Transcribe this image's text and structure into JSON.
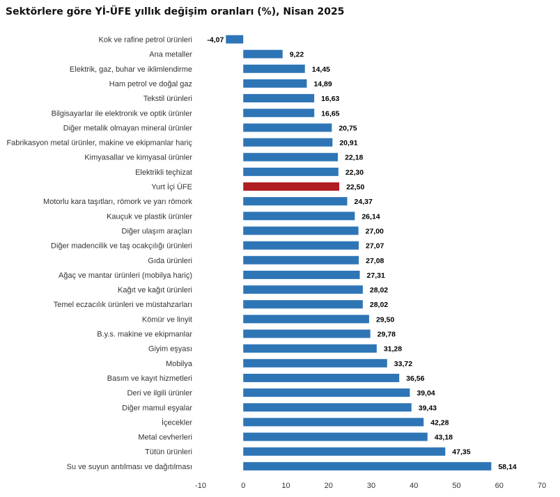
{
  "chart_data": {
    "type": "bar",
    "orientation": "horizontal",
    "title": "Sektörlere göre Yİ-ÜFE yıllık değişim oranları (%), Nisan 2025",
    "xlabel": "",
    "ylabel": "",
    "xlim": [
      -10,
      70
    ],
    "xticks": [
      -10,
      0,
      10,
      20,
      30,
      40,
      50,
      60,
      70
    ],
    "grid": false,
    "bar_color": "#2E75B6",
    "highlight_color": "#B01E23",
    "highlight_category": "Yurt İçi ÜFE",
    "categories": [
      "Kok ve rafine petrol ürünleri",
      "Ana metaller",
      "Elektrik, gaz, buhar ve iklimlendirme",
      "Ham petrol ve doğal gaz",
      "Tekstil ürünleri",
      "Bilgisayarlar ile elektronik ve optik ürünler",
      "Diğer metalik olmayan mineral ürünler",
      "Fabrikasyon metal ürünler, makine ve ekipmanlar hariç",
      "Kimyasallar ve kimyasal ürünler",
      "Elektrikli teçhizat",
      "Yurt İçi ÜFE",
      "Motorlu kara taşıtları, römork ve yarı römork",
      "Kauçuk ve plastik ürünler",
      "Diğer ulaşım araçları",
      "Diğer madencilik ve taş ocakçılığı ürünleri",
      "Gıda ürünleri",
      "Ağaç ve mantar ürünleri (mobilya hariç)",
      "Kağıt ve kağıt ürünleri",
      "Temel eczacılık ürünleri ve müstahzarları",
      "Kömür ve linyit",
      "B.y.s. makine ve ekipmanlar",
      "Giyim eşyası",
      "Mobilya",
      "Basım ve kayıt hizmetleri",
      "Deri ve ilgili ürünler",
      "Diğer mamul eşyalar",
      "İçecekler",
      "Metal cevherleri",
      "Tütün ürünleri",
      "Su ve suyun arıtılması ve dağıtılması"
    ],
    "values": [
      -4.07,
      9.22,
      14.45,
      14.89,
      16.63,
      16.65,
      20.75,
      20.91,
      22.18,
      22.3,
      22.5,
      24.37,
      26.14,
      27.0,
      27.07,
      27.08,
      27.31,
      28.02,
      28.02,
      29.5,
      29.78,
      31.28,
      33.72,
      36.56,
      39.04,
      39.43,
      42.28,
      43.18,
      47.35,
      58.14
    ],
    "value_labels": [
      "-4,07",
      "9,22",
      "14,45",
      "14,89",
      "16,63",
      "16,65",
      "20,75",
      "20,91",
      "22,18",
      "22,30",
      "22,50",
      "24,37",
      "26,14",
      "27,00",
      "27,07",
      "27,08",
      "27,31",
      "28,02",
      "28,02",
      "29,50",
      "29,78",
      "31,28",
      "33,72",
      "36,56",
      "39,04",
      "39,43",
      "42,28",
      "43,18",
      "47,35",
      "58,14"
    ]
  }
}
